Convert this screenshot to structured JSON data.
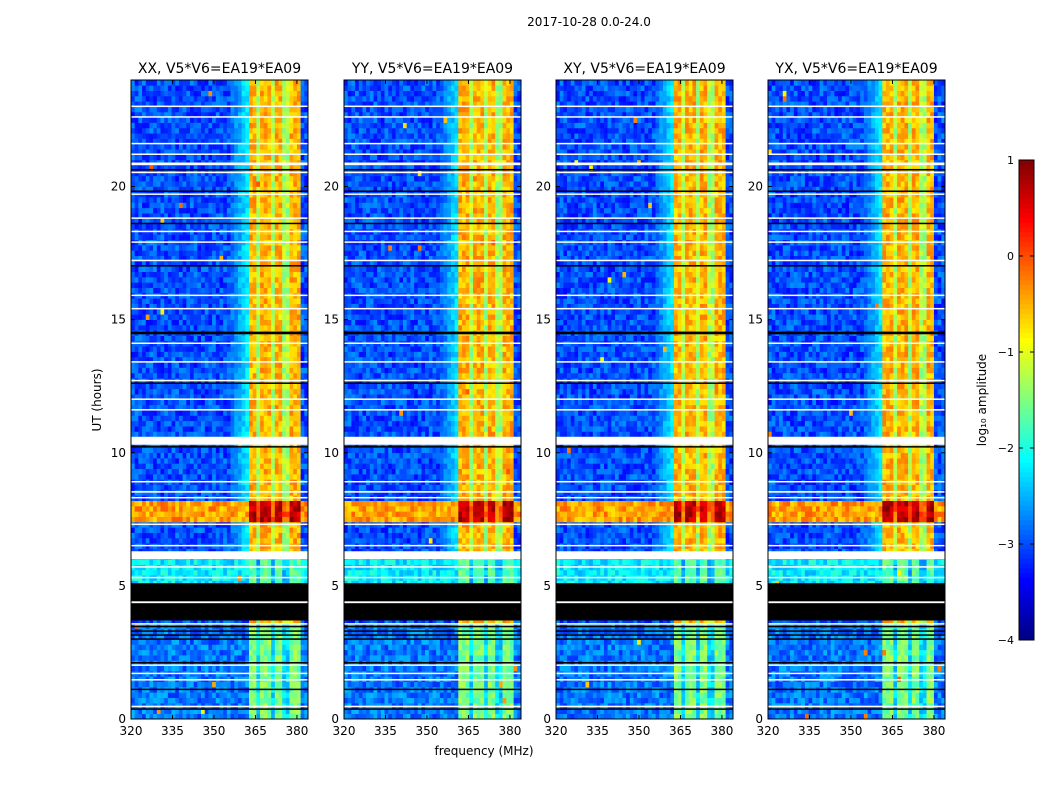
{
  "chart_data": {
    "type": "heatmap",
    "suptitle": "2017-10-28 0.0-24.0",
    "xlabel": "frequency (MHz)",
    "ylabel": "UT (hours)",
    "xlim": [
      320,
      384
    ],
    "ylim": [
      0,
      24
    ],
    "xticks": [
      "320",
      "335",
      "350",
      "365",
      "380"
    ],
    "xtick_values": [
      320,
      335,
      350,
      365,
      380
    ],
    "yticks": [
      "0",
      "5",
      "10",
      "15",
      "20"
    ],
    "ytick_values": [
      0,
      5,
      10,
      15,
      20
    ],
    "panels": [
      {
        "title": "XX, V5*V6=EA19*EA09",
        "rfi_band_mhz": [
          363,
          381
        ]
      },
      {
        "title": "YY, V5*V6=EA19*EA09",
        "rfi_band_mhz": [
          362,
          381
        ]
      },
      {
        "title": "XY, V5*V6=EA19*EA09",
        "rfi_band_mhz": [
          363,
          381
        ]
      },
      {
        "title": "YX, V5*V6=EA19*EA09",
        "rfi_band_mhz": [
          362,
          380
        ]
      }
    ],
    "rfi_subgaps_mhz": [
      366,
      371,
      376
    ],
    "background_log_amplitude": -3.0,
    "features": [
      {
        "hours": [
          0,
          3.7
        ],
        "band_level": -1.5,
        "bg_level": -2.8
      },
      {
        "hours": [
          5.1,
          6.0
        ],
        "band_level": -1.7,
        "bg_level": -2.2
      },
      {
        "hours": [
          6.3,
          7.5
        ],
        "band_level": -0.5,
        "bg_level": -3.0
      },
      {
        "hours": [
          7.5,
          8.3
        ],
        "band_level": 0.7,
        "bg_level": -0.4
      },
      {
        "hours": [
          8.3,
          24
        ],
        "band_level": -0.5,
        "bg_level": -3.0
      }
    ],
    "flagged_black_hours": [
      [
        3.7,
        5.1
      ],
      [
        3.45,
        3.5
      ],
      [
        3.3,
        3.33
      ],
      [
        3.15,
        3.18
      ],
      [
        3.0,
        3.03
      ],
      [
        2.1,
        2.14
      ],
      [
        1.1,
        1.14
      ],
      [
        0.35,
        0.4
      ],
      [
        10.2,
        10.25
      ],
      [
        12.6,
        12.64
      ],
      [
        14.45,
        14.55
      ],
      [
        17.0,
        17.05
      ],
      [
        18.6,
        18.64
      ],
      [
        19.8,
        19.85
      ],
      [
        20.6,
        20.66
      ]
    ],
    "flagged_white_hours": [
      [
        4.35,
        4.42
      ],
      [
        3.55,
        3.6
      ],
      [
        2.0,
        2.05
      ],
      [
        1.7,
        1.74
      ],
      [
        1.45,
        1.5
      ],
      [
        0.45,
        0.5
      ],
      [
        5.3,
        5.34
      ],
      [
        5.7,
        5.74
      ],
      [
        6.0,
        6.3
      ],
      [
        6.5,
        6.54
      ],
      [
        7.3,
        7.34
      ],
      [
        8.3,
        8.34
      ],
      [
        8.5,
        8.56
      ],
      [
        8.9,
        8.94
      ],
      [
        10.3,
        10.6
      ],
      [
        11.6,
        11.64
      ],
      [
        12.0,
        12.04
      ],
      [
        12.7,
        12.74
      ],
      [
        13.4,
        13.44
      ],
      [
        14.1,
        14.14
      ],
      [
        15.4,
        15.44
      ],
      [
        15.9,
        15.94
      ],
      [
        17.2,
        17.25
      ],
      [
        17.9,
        17.94
      ],
      [
        18.3,
        18.34
      ],
      [
        18.8,
        18.84
      ],
      [
        19.7,
        19.74
      ],
      [
        20.5,
        20.56
      ],
      [
        20.8,
        20.9
      ],
      [
        21.2,
        21.24
      ],
      [
        21.6,
        21.64
      ],
      [
        22.6,
        22.64
      ],
      [
        23.0,
        23.04
      ]
    ],
    "colorbar": {
      "label": "log₁₀ amplitude",
      "range": [
        -4,
        1
      ],
      "ticks": [
        "−4",
        "−3",
        "−2",
        "−1",
        "0",
        "1"
      ],
      "tick_values": [
        -4,
        -3,
        -2,
        -1,
        0,
        1
      ],
      "colormap": "jet"
    }
  }
}
